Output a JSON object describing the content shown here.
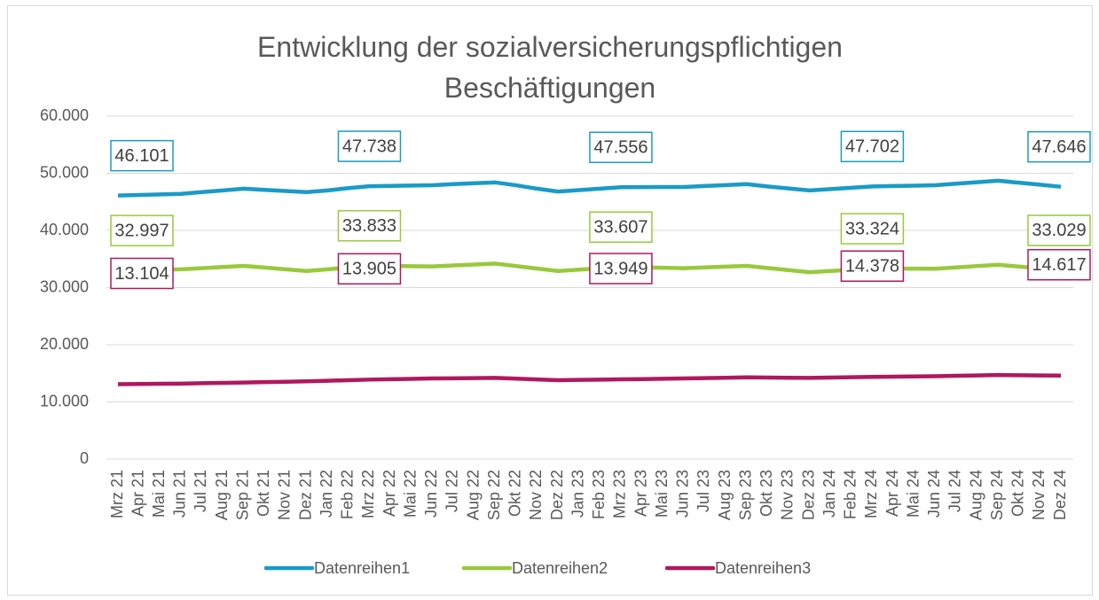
{
  "chart_data": {
    "type": "line",
    "title": "Entwicklung der sozialversicherungspflichtigen Beschäftigungen",
    "categories": [
      "Mrz 21",
      "Apr 21",
      "Mai 21",
      "Jun 21",
      "Jul 21",
      "Aug 21",
      "Sep 21",
      "Okt 21",
      "Nov 21",
      "Dez 21",
      "Jan 22",
      "Feb 22",
      "Mrz 22",
      "Apr 22",
      "Mai 22",
      "Jun 22",
      "Jul 22",
      "Aug 22",
      "Sep 22",
      "Okt 22",
      "Nov 22",
      "Dez 22",
      "Jan 23",
      "Feb 23",
      "Mrz 23",
      "Apr 23",
      "Mai 23",
      "Jun 23",
      "Jul 23",
      "Aug 23",
      "Sep 23",
      "Okt 23",
      "Nov 23",
      "Dez 23",
      "Jan 24",
      "Feb 24",
      "Mrz 24",
      "Apr 24",
      "Mai 24",
      "Jun 24",
      "Jul 24",
      "Aug 24",
      "Sep 24",
      "Okt 24",
      "Nov 24",
      "Dez 24"
    ],
    "series": [
      {
        "name": "Datenreihen1",
        "color": "#1a9bc7",
        "values": [
          46101,
          46200,
          46300,
          46400,
          46700,
          47000,
          47300,
          47100,
          46900,
          46700,
          47000,
          47400,
          47738,
          47800,
          47850,
          47900,
          48100,
          48250,
          48400,
          47900,
          47300,
          46800,
          47050,
          47300,
          47556,
          47570,
          47590,
          47600,
          47770,
          47930,
          48100,
          47700,
          47350,
          47000,
          47230,
          47470,
          47702,
          47770,
          47830,
          47900,
          48170,
          48430,
          48700,
          48350,
          48000,
          47646
        ],
        "value_labels": [
          "46.101",
          null,
          null,
          null,
          null,
          null,
          null,
          null,
          null,
          null,
          null,
          null,
          "47.738",
          null,
          null,
          null,
          null,
          null,
          null,
          null,
          null,
          null,
          null,
          null,
          "47.556",
          null,
          null,
          null,
          null,
          null,
          null,
          null,
          null,
          null,
          null,
          null,
          "47.702",
          null,
          null,
          null,
          null,
          null,
          null,
          null,
          null,
          "47.646"
        ]
      },
      {
        "name": "Datenreihen2",
        "color": "#99c93c",
        "values": [
          32997,
          33070,
          33130,
          33200,
          33400,
          33600,
          33800,
          33500,
          33200,
          32900,
          33200,
          33500,
          33833,
          33790,
          33740,
          33700,
          33870,
          34030,
          34200,
          33770,
          33330,
          32900,
          33140,
          33370,
          33607,
          33540,
          33470,
          33400,
          33530,
          33670,
          33800,
          33430,
          33070,
          32700,
          32910,
          33120,
          33324,
          33320,
          33310,
          33300,
          33530,
          33770,
          34000,
          33680,
          33350,
          33029
        ],
        "value_labels": [
          "32.997",
          null,
          null,
          null,
          null,
          null,
          null,
          null,
          null,
          null,
          null,
          null,
          "33.833",
          null,
          null,
          null,
          null,
          null,
          null,
          null,
          null,
          null,
          null,
          null,
          "33.607",
          null,
          null,
          null,
          null,
          null,
          null,
          null,
          null,
          null,
          null,
          null,
          "33.324",
          null,
          null,
          null,
          null,
          null,
          null,
          null,
          null,
          "33.029"
        ]
      },
      {
        "name": "Datenreihen3",
        "color": "#b0185e",
        "values": [
          13104,
          13140,
          13170,
          13200,
          13270,
          13330,
          13400,
          13470,
          13530,
          13600,
          13700,
          13800,
          13905,
          13970,
          14030,
          14100,
          14130,
          14170,
          14200,
          14070,
          13930,
          13800,
          13850,
          13900,
          13949,
          14000,
          14050,
          14100,
          14170,
          14230,
          14300,
          14270,
          14230,
          14200,
          14260,
          14320,
          14378,
          14420,
          14460,
          14500,
          14570,
          14630,
          14700,
          14670,
          14640,
          14617
        ],
        "value_labels": [
          "13.104",
          null,
          null,
          null,
          null,
          null,
          null,
          null,
          null,
          null,
          null,
          null,
          "13.905",
          null,
          null,
          null,
          null,
          null,
          null,
          null,
          null,
          null,
          null,
          null,
          "13.949",
          null,
          null,
          null,
          null,
          null,
          null,
          null,
          null,
          null,
          null,
          null,
          "14.378",
          null,
          null,
          null,
          null,
          null,
          null,
          null,
          null,
          "14.617"
        ]
      }
    ],
    "ylim": [
      0,
      60000
    ],
    "yticks": [
      0,
      {
        "value": 10000,
        "label": "10.000"
      },
      {
        "value": 20000,
        "label": "20.000"
      },
      {
        "value": 30000,
        "label": "30.000"
      },
      {
        "value": 40000,
        "label": "40.000"
      },
      {
        "value": 50000,
        "label": "50.000"
      },
      {
        "value": 60000,
        "label": "60.000"
      }
    ],
    "grid": true,
    "legend": "bottom"
  }
}
